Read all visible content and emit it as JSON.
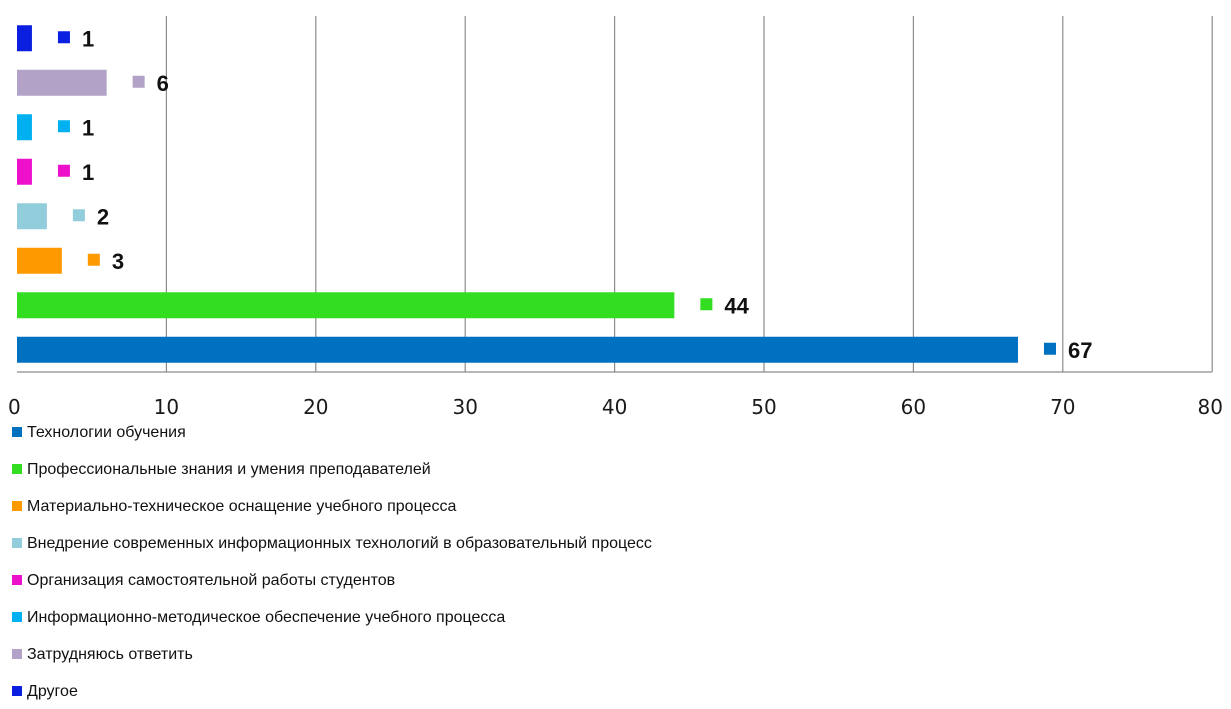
{
  "chart_data": {
    "type": "bar",
    "orientation": "horizontal",
    "title": "",
    "xlabel": "",
    "ylabel": "",
    "xlim": [
      0,
      80
    ],
    "x_ticks": [
      0,
      10,
      20,
      30,
      40,
      50,
      60,
      70,
      80
    ],
    "grid": "vertical",
    "legend_position": "bottom",
    "series": [
      {
        "name": "Технологии обучения",
        "value": 67,
        "color": "#0070C0"
      },
      {
        "name": "Профессиональные знания и умения преподавателей",
        "value": 44,
        "color": "#33DD22"
      },
      {
        "name": "Материально-техническое оснащение учебного процесса",
        "value": 3,
        "color": "#FF9900"
      },
      {
        "name": "Внедрение современных информационных технологий в образовательный процесс",
        "value": 2,
        "color": "#92CDDC"
      },
      {
        "name": "Организация самостоятельной работы студентов",
        "value": 1,
        "color": "#EE11CC"
      },
      {
        "name": "Информационно-методическое обеспечение учебного процесса",
        "value": 1,
        "color": "#00B0F0"
      },
      {
        "name": "Затрудняюсь ответить",
        "value": 6,
        "color": "#B3A2C7"
      },
      {
        "name": "Другое",
        "value": 1,
        "color": "#0A1FE0"
      }
    ]
  }
}
